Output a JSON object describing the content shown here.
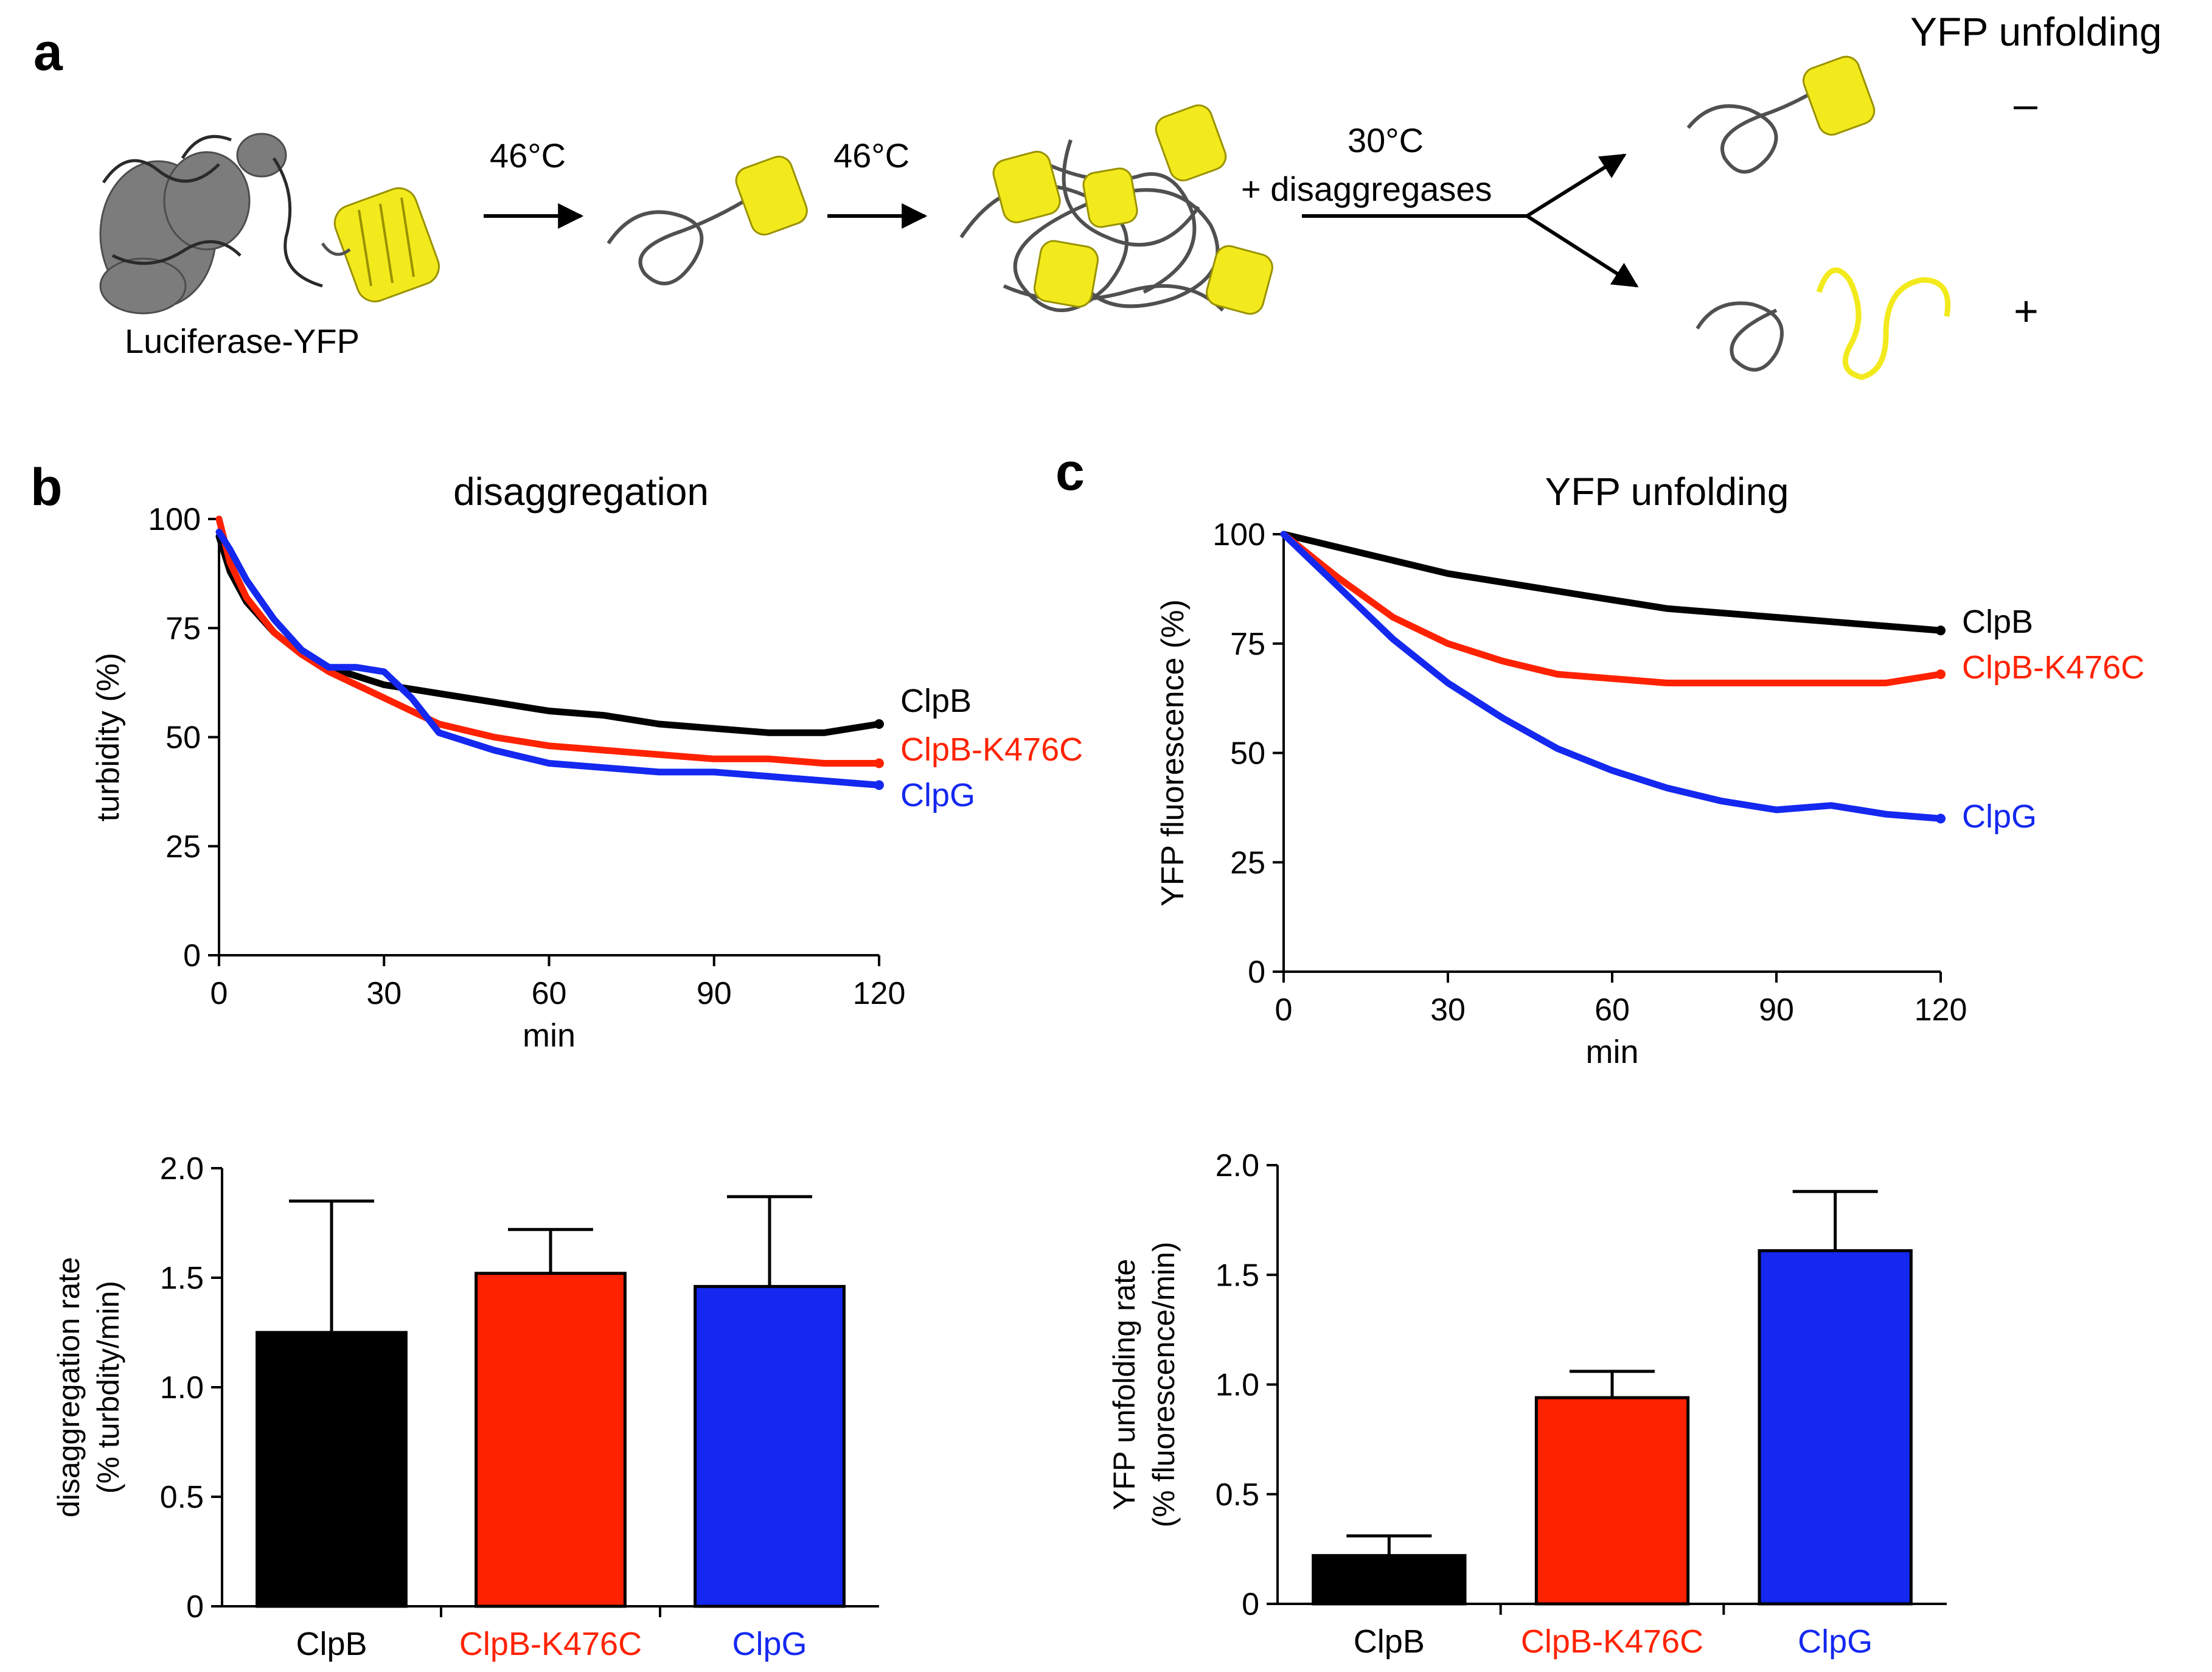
{
  "panel_letters": {
    "a": "a",
    "b": "b",
    "c": "c"
  },
  "schematic": {
    "protein_label": "Luciferase-YFP",
    "step1_temp": "46°C",
    "step2_temp": "46°C",
    "step3_temp": "30°C",
    "step3_additive": "+ disaggregases",
    "outcome_header": "YFP unfolding",
    "outcome_minus": "–",
    "outcome_plus": "+"
  },
  "colors": {
    "black": "#000000",
    "red": "#ff2200",
    "blue": "#1428f0",
    "yellow": "#f2ea1c",
    "grey": "#505050"
  },
  "chart_data": [
    {
      "type": "line",
      "id": "b_top",
      "title": "disaggregation",
      "xlabel": "min",
      "ylabel": "turbidity (%)",
      "xlim": [
        0,
        120
      ],
      "ylim": [
        0,
        100
      ],
      "xticks": [
        "0",
        "30",
        "60",
        "90",
        "120"
      ],
      "yticks": [
        "0",
        "25",
        "50",
        "75",
        "100"
      ],
      "x": [
        0,
        2,
        5,
        10,
        15,
        20,
        25,
        30,
        35,
        40,
        50,
        60,
        70,
        80,
        90,
        100,
        110,
        120
      ],
      "series": [
        {
          "name": "ClpB",
          "color": "#000000",
          "values": [
            96,
            88,
            81,
            74,
            69,
            66,
            64,
            62,
            61,
            60,
            58,
            56,
            55,
            53,
            52,
            51,
            51,
            53
          ]
        },
        {
          "name": "ClpB-K476C",
          "color": "#ff2200",
          "values": [
            100,
            90,
            82,
            74,
            69,
            65,
            62,
            59,
            56,
            53,
            50,
            48,
            47,
            46,
            45,
            45,
            44,
            44
          ]
        },
        {
          "name": "ClpG",
          "color": "#1428f0",
          "values": [
            97,
            93,
            86,
            77,
            70,
            66,
            66,
            65,
            59,
            51,
            47,
            44,
            43,
            42,
            42,
            41,
            40,
            39
          ]
        }
      ]
    },
    {
      "type": "line",
      "id": "c_top",
      "title": "YFP unfolding",
      "xlabel": "min",
      "ylabel": "YFP fluorescence (%)",
      "xlim": [
        0,
        120
      ],
      "ylim": [
        0,
        100
      ],
      "xticks": [
        "0",
        "30",
        "60",
        "90",
        "120"
      ],
      "yticks": [
        "0",
        "25",
        "50",
        "75",
        "100"
      ],
      "x": [
        0,
        10,
        20,
        30,
        40,
        50,
        60,
        70,
        80,
        90,
        100,
        110,
        120
      ],
      "series": [
        {
          "name": "ClpB",
          "color": "#000000",
          "values": [
            100,
            97,
            94,
            91,
            89,
            87,
            85,
            83,
            82,
            81,
            80,
            79,
            78
          ]
        },
        {
          "name": "ClpB-K476C",
          "color": "#ff2200",
          "values": [
            100,
            90,
            81,
            75,
            71,
            68,
            67,
            66,
            66,
            66,
            66,
            66,
            68
          ]
        },
        {
          "name": "ClpG",
          "color": "#1428f0",
          "values": [
            100,
            88,
            76,
            66,
            58,
            51,
            46,
            42,
            39,
            37,
            38,
            36,
            35
          ]
        }
      ]
    },
    {
      "type": "bar",
      "id": "b_bottom",
      "ylabel_line1": "disaggregation rate",
      "ylabel_line2": "(% turbdity/min)",
      "ylim": [
        0,
        2.0
      ],
      "yticks": [
        "0",
        "0.5",
        "1.0",
        "1.5",
        "2.0"
      ],
      "categories": [
        "ClpB",
        "ClpB-K476C",
        "ClpG"
      ],
      "values": [
        1.25,
        1.52,
        1.46
      ],
      "errors": [
        0.6,
        0.2,
        0.41
      ],
      "bar_colors": [
        "#000000",
        "#ff2200",
        "#1428f0"
      ]
    },
    {
      "type": "bar",
      "id": "c_bottom",
      "ylabel_line1": "YFP unfolding rate",
      "ylabel_line2": "(% fluorescence/min)",
      "ylim": [
        0,
        2.0
      ],
      "yticks": [
        "0",
        "0.5",
        "1.0",
        "1.5",
        "2.0"
      ],
      "categories": [
        "ClpB",
        "ClpB-K476C",
        "ClpG"
      ],
      "values": [
        0.22,
        0.94,
        1.61
      ],
      "errors": [
        0.09,
        0.12,
        0.27
      ],
      "bar_colors": [
        "#000000",
        "#ff2200",
        "#1428f0"
      ]
    }
  ]
}
